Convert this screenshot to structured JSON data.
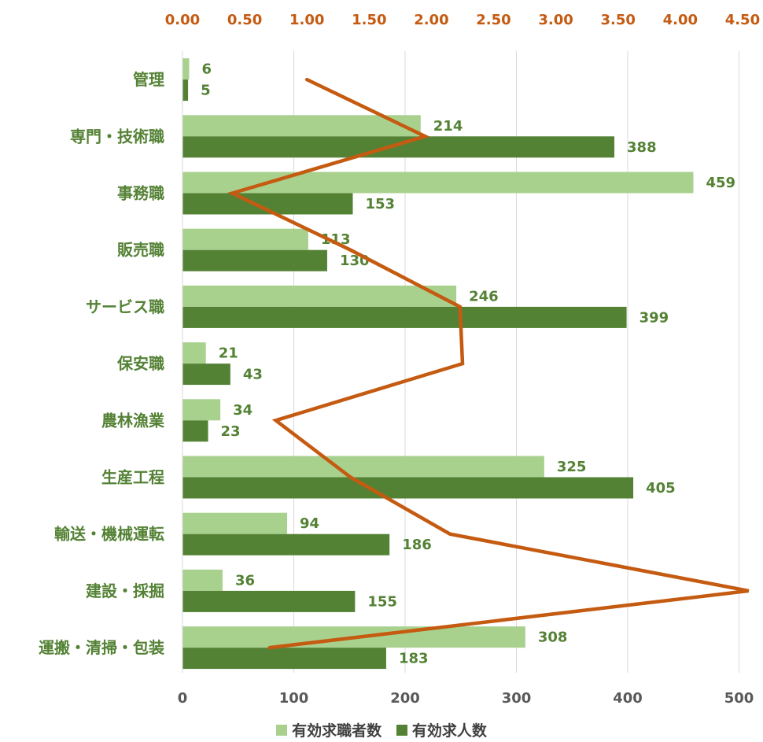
{
  "chart_data": {
    "type": "bar",
    "orientation": "horizontal",
    "categories": [
      "管理",
      "専門・技術職",
      "事務職",
      "販売職",
      "サービス職",
      "保安職",
      "農林漁業",
      "生産工程",
      "輸送・機械運転",
      "建設・採掘",
      "運搬・清掃・包装"
    ],
    "series": [
      {
        "name": "有効求職者数",
        "values": [
          6,
          214,
          459,
          113,
          246,
          21,
          34,
          325,
          94,
          36,
          308
        ],
        "color": "#a9d18e",
        "axis": "primary"
      },
      {
        "name": "有効求人数",
        "values": [
          5,
          388,
          153,
          130,
          399,
          43,
          23,
          405,
          186,
          155,
          183
        ],
        "color": "#548235",
        "axis": "primary"
      },
      {
        "name": "",
        "values": [
          1.0,
          1.95,
          0.4,
          1.35,
          2.23,
          2.25,
          0.75,
          1.35,
          2.15,
          4.55,
          0.7
        ],
        "color": "#c55a11",
        "type": "line",
        "axis": "secondary"
      }
    ],
    "xlim": [
      0,
      520
    ],
    "xticks": [
      "0",
      "100",
      "200",
      "300",
      "400",
      "500"
    ],
    "secondary_xlim": [
      0,
      4.6
    ],
    "secondary_xticks": [
      "0.00",
      "0.50",
      "1.00",
      "1.50",
      "2.00",
      "2.50",
      "3.00",
      "3.50",
      "4.00",
      "4.50"
    ],
    "grid": true,
    "legend_position": "bottom",
    "colors": {
      "category_label": "#548235",
      "primary_tick": "#595959",
      "secondary_tick": "#c55a11",
      "gridline": "#d9d9d9"
    }
  }
}
